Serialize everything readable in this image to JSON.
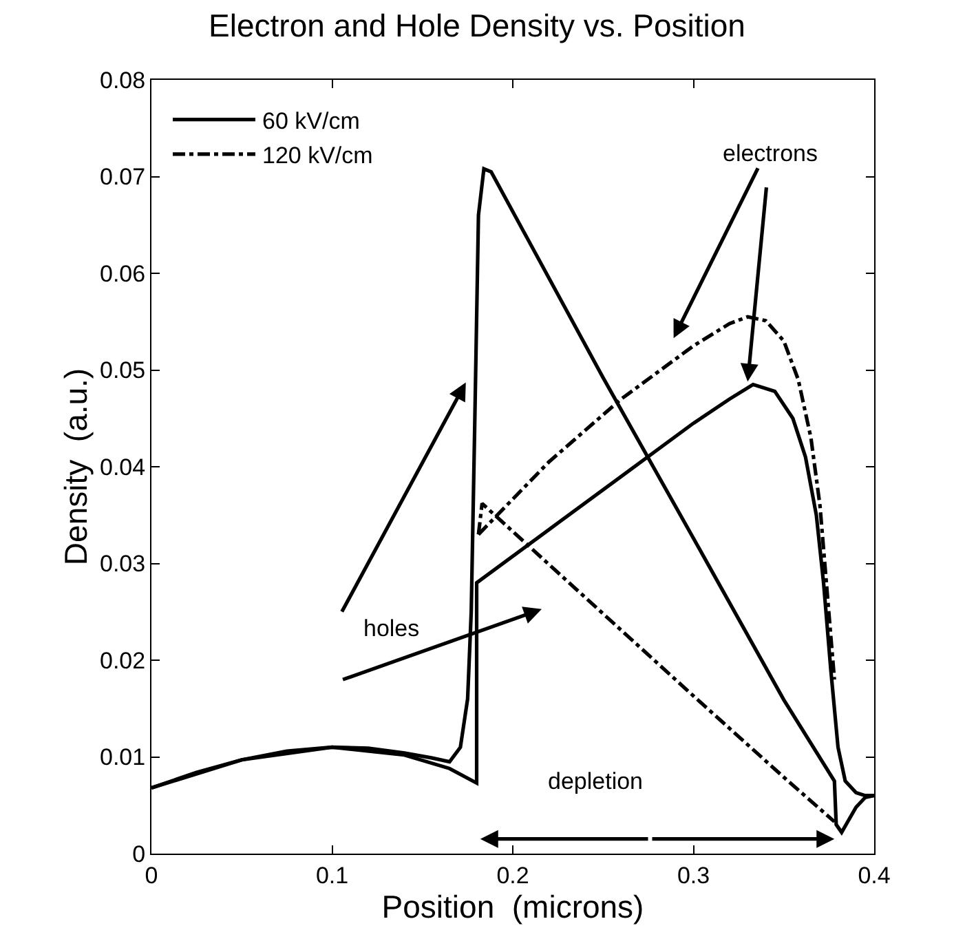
{
  "chart_data": {
    "type": "line",
    "title": "Electron and Hole Density vs. Position",
    "xlabel": "Position  (microns)",
    "ylabel": "Density  (a.u.)",
    "xlim": [
      0,
      0.4
    ],
    "ylim": [
      0,
      0.08
    ],
    "xticks": [
      0,
      0.1,
      0.2,
      0.3,
      0.4
    ],
    "yticks": [
      0,
      0.01,
      0.02,
      0.03,
      0.04,
      0.05,
      0.06,
      0.07,
      0.08
    ],
    "grid": false,
    "legend": "top left",
    "marker": "none",
    "series": [
      {
        "name": "60 kV/cm",
        "color": "#000000",
        "line_style": "solid",
        "x": [
          0,
          0.025,
          0.05,
          0.075,
          0.1,
          0.12,
          0.14,
          0.155,
          0.165,
          0.171,
          0.175,
          0.177,
          0.179,
          0.181,
          0.184,
          0.188,
          0.25,
          0.3,
          0.35,
          0.378,
          0.379,
          0.382,
          0.386,
          0.39,
          0.395,
          0.4
        ],
        "values": [
          0.0068,
          0.0084,
          0.0097,
          0.0106,
          0.011,
          0.0109,
          0.0104,
          0.0099,
          0.0095,
          0.011,
          0.016,
          0.025,
          0.045,
          0.066,
          0.0708,
          0.0705,
          0.0492,
          0.0326,
          0.0159,
          0.0075,
          0.003,
          0.0022,
          0.0035,
          0.0048,
          0.0058,
          0.006
        ]
      },
      {
        "color": "#000000",
        "line_style": "solid",
        "x": [
          0,
          0.05,
          0.1,
          0.14,
          0.165,
          0.18,
          0.18,
          0.22,
          0.26,
          0.3,
          0.32,
          0.333,
          0.345,
          0.355,
          0.362,
          0.368,
          0.372,
          0.376,
          0.38,
          0.384,
          0.39,
          0.395,
          0.4
        ],
        "values": [
          0.0068,
          0.0097,
          0.011,
          0.0102,
          0.0088,
          0.0073,
          0.028,
          0.0335,
          0.039,
          0.0445,
          0.047,
          0.0485,
          0.0478,
          0.045,
          0.041,
          0.035,
          0.028,
          0.019,
          0.011,
          0.0075,
          0.0063,
          0.006,
          0.006
        ]
      },
      {
        "name": "120 kV/cm",
        "color": "#000000",
        "line_style": "dashdot",
        "x": [
          0.181,
          0.183,
          0.25,
          0.3,
          0.35,
          0.378
        ],
        "values": [
          0.033,
          0.0362,
          0.0248,
          0.0163,
          0.0079,
          0.0033
        ]
      },
      {
        "color": "#000000",
        "line_style": "dashdot",
        "x": [
          0.181,
          0.22,
          0.26,
          0.3,
          0.32,
          0.33,
          0.34,
          0.35,
          0.358,
          0.365,
          0.37,
          0.374,
          0.378
        ],
        "values": [
          0.033,
          0.0405,
          0.047,
          0.0525,
          0.0548,
          0.0555,
          0.0551,
          0.053,
          0.049,
          0.043,
          0.036,
          0.027,
          0.018
        ]
      }
    ],
    "annotations": [
      {
        "text": "electrons",
        "x": 0.33,
        "y": 0.0488
      },
      "holes",
      "depletion"
    ]
  }
}
